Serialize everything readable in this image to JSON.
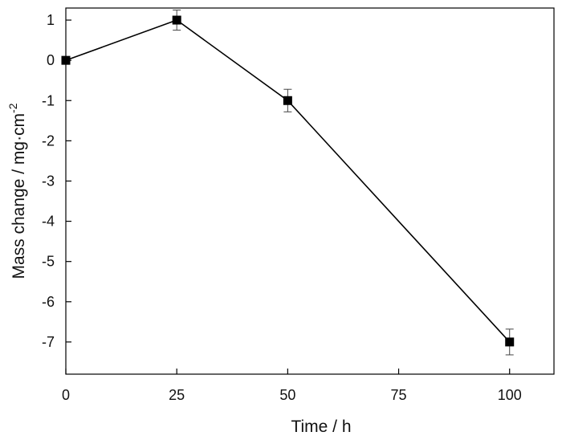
{
  "chart_data": {
    "type": "line",
    "xlabel": "Time / h",
    "ylabel_main": "Mass change / mg·cm",
    "ylabel_sup": "-2",
    "xlim": [
      0,
      110
    ],
    "ylim": [
      -7.8,
      1.3
    ],
    "xticks": [
      0,
      25,
      50,
      75,
      100
    ],
    "xtick_labels": [
      "0",
      "25",
      "50",
      "75",
      "100"
    ],
    "yticks": [
      1,
      0,
      -1,
      -2,
      -3,
      -4,
      -5,
      -6,
      -7
    ],
    "ytick_labels": [
      "1",
      "0",
      "-1",
      "-2",
      "-3",
      "-4",
      "-5",
      "-6",
      "-7"
    ],
    "grid": false,
    "marker": "square",
    "color": "#000000",
    "series": [
      {
        "x": [
          0,
          25,
          50,
          100
        ],
        "y": [
          0,
          1,
          -1,
          -7
        ],
        "error": [
          0.0,
          0.25,
          0.28,
          0.32
        ]
      }
    ]
  }
}
